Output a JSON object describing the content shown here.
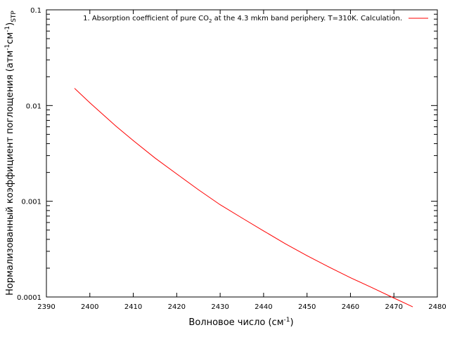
{
  "chart_data": {
    "type": "line",
    "xlabel": "Волновое число (см",
    "xlabel_sup": "-1",
    "xlabel_end": ")",
    "ylabel": "Нормализованный коэффициент поглощения (атм",
    "ylabel_sup1": "-1",
    "ylabel_mid": "см",
    "ylabel_sup2": "-1",
    "ylabel_end": ")",
    "ylabel_sub": "STP",
    "xlim": [
      2390,
      2480
    ],
    "ylim": [
      0.0001,
      0.1
    ],
    "yscale": "log",
    "grid": false,
    "legend_position": "top-right",
    "x_ticks": [
      "2390",
      "2400",
      "2410",
      "2420",
      "2430",
      "2440",
      "2450",
      "2460",
      "2470",
      "2480"
    ],
    "y_ticks": [
      {
        "value": 0.0001,
        "label": "0.0001"
      },
      {
        "value": 0.001,
        "label": "0.001"
      },
      {
        "value": 0.01,
        "label": "0.01"
      },
      {
        "value": 0.1,
        "label": "0.1"
      }
    ],
    "series": [
      {
        "name": "1. Absorption coefficient of pure CO",
        "name_sub": "2",
        "name_rest": " at the 4.3 mkm band periphery. T=310K. Calculation.",
        "color": "#ff0000",
        "x": [
          2396.5,
          2400,
          2406,
          2410,
          2415,
          2420,
          2425,
          2430,
          2435,
          2440,
          2445,
          2450,
          2455,
          2460,
          2465,
          2470,
          2474.3
        ],
        "y": [
          0.0151,
          0.0107,
          0.0061,
          0.0043,
          0.00283,
          0.00193,
          0.00132,
          0.00092,
          0.00067,
          0.00049,
          0.00036,
          0.00027,
          0.000206,
          0.000159,
          0.000125,
          9.75e-05,
          7.9e-05
        ]
      }
    ]
  }
}
